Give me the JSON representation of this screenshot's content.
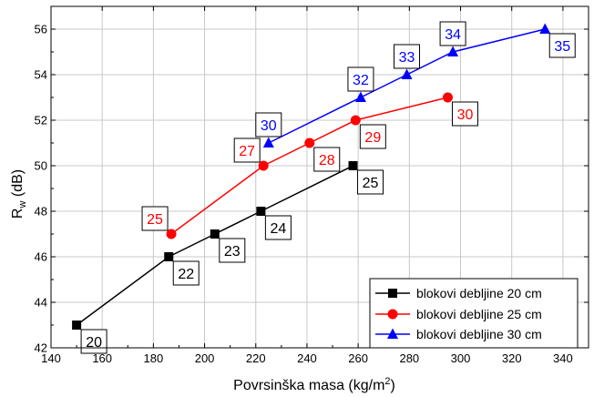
{
  "chart_data": {
    "type": "line",
    "title": "",
    "xlabel": "Povrsinška masa (kg/m",
    "xlabel_sup": "2",
    "xlabel_suffix": ")",
    "ylabel": "R",
    "ylabel_sub": "w",
    "ylabel_suffix": " (dB)",
    "xlim": [
      140,
      350
    ],
    "ylim": [
      42,
      57
    ],
    "xticks": [
      140,
      160,
      180,
      200,
      220,
      240,
      260,
      280,
      300,
      320,
      340
    ],
    "yticks": [
      42,
      44,
      46,
      48,
      50,
      52,
      54,
      56
    ],
    "grid": true,
    "legend_position": "bottom-right",
    "series": [
      {
        "name": "blokovi debljine 20 cm",
        "color": "#000000",
        "marker": "square",
        "x": [
          150,
          186,
          204,
          222,
          258
        ],
        "y": [
          43,
          46,
          47,
          48,
          50
        ],
        "labels": [
          "20",
          "22",
          "23",
          "24",
          "25"
        ]
      },
      {
        "name": "blokovi debljine 25 cm",
        "color": "#ff0000",
        "marker": "circle",
        "x": [
          187,
          223,
          241,
          259,
          295
        ],
        "y": [
          47,
          50,
          51,
          52,
          53
        ],
        "labels": [
          "25",
          "27",
          "28",
          "29",
          "30"
        ]
      },
      {
        "name": "blokovi debljine 30 cm",
        "color": "#0000ff",
        "marker": "triangle",
        "x": [
          225,
          261,
          279,
          297,
          333
        ],
        "y": [
          51,
          53,
          54,
          55,
          56
        ],
        "labels": [
          "30",
          "32",
          "33",
          "34",
          "35"
        ]
      }
    ]
  }
}
